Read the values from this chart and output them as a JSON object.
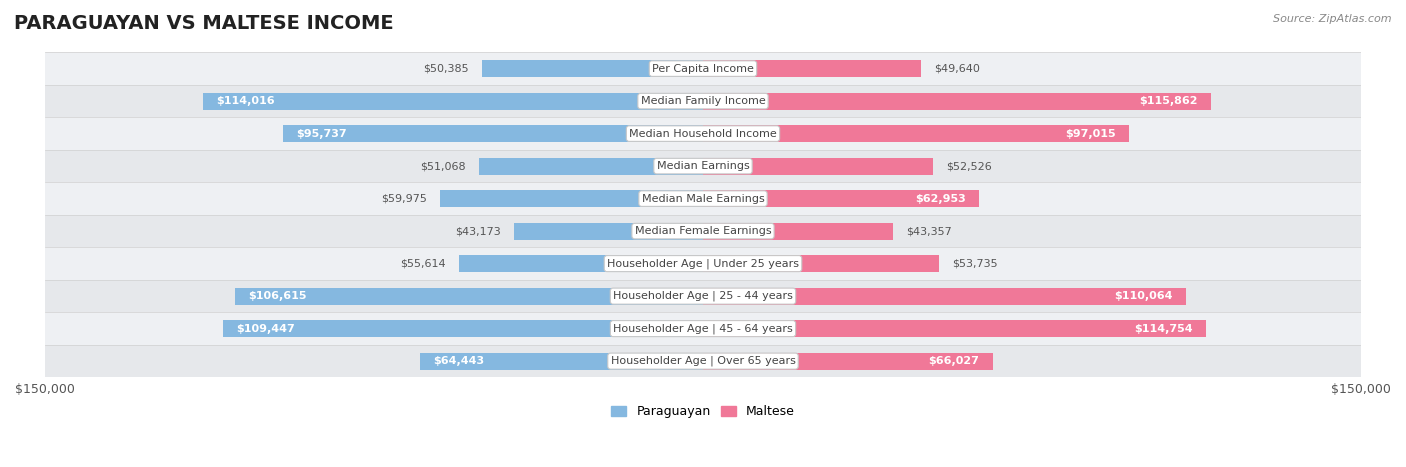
{
  "title": "PARAGUAYAN VS MALTESE INCOME",
  "source": "Source: ZipAtlas.com",
  "categories": [
    "Per Capita Income",
    "Median Family Income",
    "Median Household Income",
    "Median Earnings",
    "Median Male Earnings",
    "Median Female Earnings",
    "Householder Age | Under 25 years",
    "Householder Age | 25 - 44 years",
    "Householder Age | 45 - 64 years",
    "Householder Age | Over 65 years"
  ],
  "paraguayan": [
    50385,
    114016,
    95737,
    51068,
    59975,
    43173,
    55614,
    106615,
    109447,
    64443
  ],
  "maltese": [
    49640,
    115862,
    97015,
    52526,
    62953,
    43357,
    53735,
    110064,
    114754,
    66027
  ],
  "paraguayan_labels": [
    "$50,385",
    "$114,016",
    "$95,737",
    "$51,068",
    "$59,975",
    "$43,173",
    "$55,614",
    "$106,615",
    "$109,447",
    "$64,443"
  ],
  "maltese_labels": [
    "$49,640",
    "$115,862",
    "$97,015",
    "$52,526",
    "$62,953",
    "$43,357",
    "$53,735",
    "$110,064",
    "$114,754",
    "$66,027"
  ],
  "max_val": 150000,
  "paraguayan_color": "#85b8e0",
  "maltese_color": "#f07898",
  "row_bg_even": "#f0f2f5",
  "row_bg_odd": "#e8eaed",
  "bar_height": 0.52,
  "inside_threshold": 60000,
  "legend_paraguayan_color": "#85b8e0",
  "legend_maltese_color": "#f07898",
  "title_fontsize": 14,
  "label_fontsize": 8,
  "cat_fontsize": 8
}
